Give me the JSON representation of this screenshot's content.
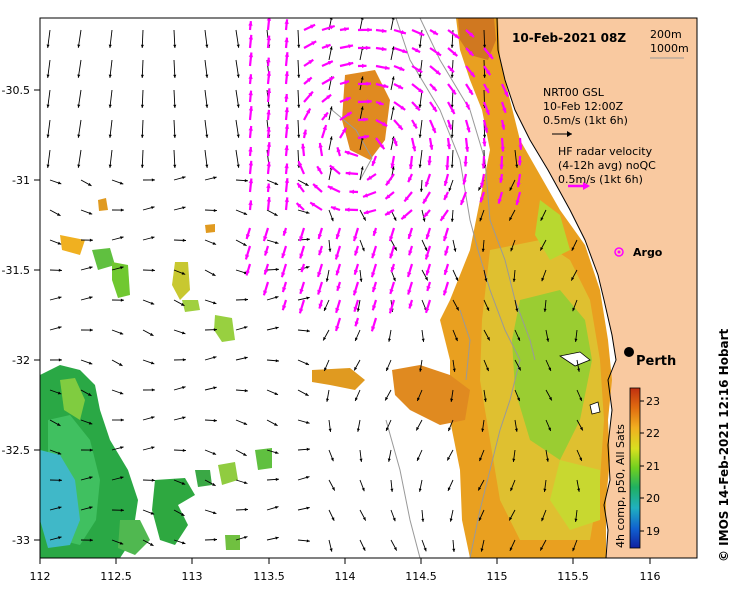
{
  "title": "10-Feb-2021 08Z",
  "contours": {
    "label_a": "200m",
    "label_b": "1000m"
  },
  "vector_legend": {
    "model_line1": "NRT00 GSL",
    "model_line2": "10-Feb 12:00Z",
    "model_line3": "0.5m/s (1kt 6h)",
    "radar_line1": "HF radar velocity",
    "radar_line2": "(4-12h avg) noQC",
    "radar_line3": "0.5m/s (1kt 6h)"
  },
  "argo_label": "Argo",
  "city_label": "Perth",
  "credit": "© IMOS 14-Feb-2021 12:16 Hobart",
  "colorbar": {
    "title": "4h comp, p50, All Sats",
    "ticks": [
      "19",
      "20",
      "21",
      "22",
      "23"
    ],
    "min": 18.6,
    "max": 23.5
  },
  "colors": {
    "land": "#F9C9A0",
    "model_arrow": "#000000",
    "radar_arrow": "#FF00FF",
    "contour": "#999999"
  },
  "map_data": {
    "lon_ticks": [
      "112",
      "112.5",
      "113",
      "113.5",
      "114",
      "114.5",
      "115",
      "115.5",
      "116"
    ],
    "lat_ticks": [
      "-30.5",
      "-31",
      "-31.5",
      "-32",
      "-32.5",
      "-33"
    ],
    "lon_range": [
      112,
      116.3
    ],
    "lat_range": [
      -33.1,
      -30.1
    ],
    "argo": {
      "lon": 115.75,
      "lat": -31.55
    },
    "perth": {
      "lon": 115.86,
      "lat": -31.95
    }
  }
}
